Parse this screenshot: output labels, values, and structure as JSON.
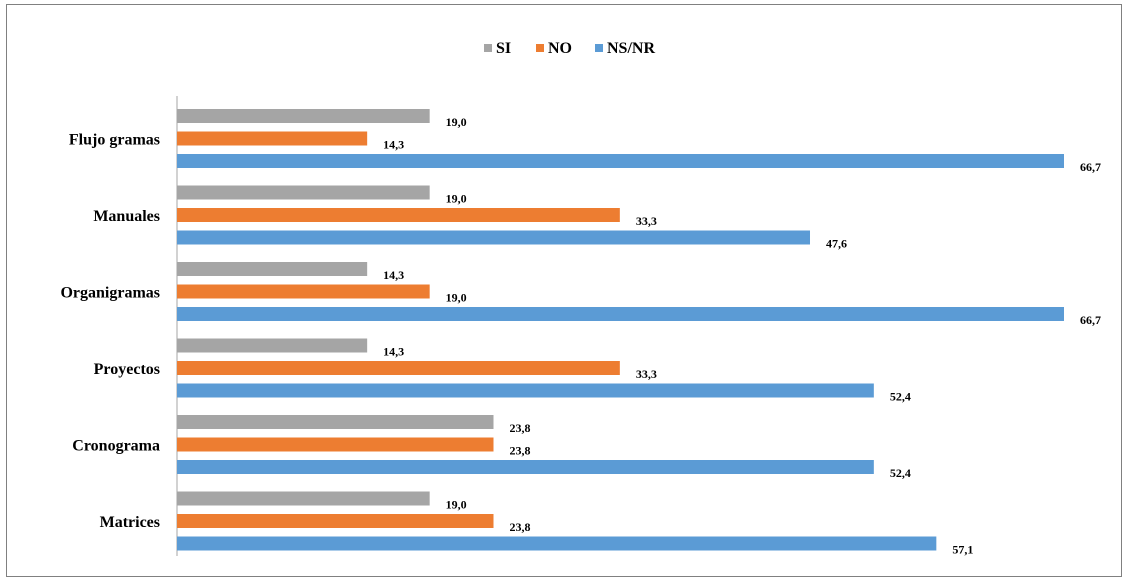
{
  "chart_data": {
    "type": "bar",
    "orientation": "horizontal",
    "categories": [
      "Flujo gramas",
      "Manuales",
      "Organigramas",
      "Proyectos",
      "Cronograma",
      "Matrices"
    ],
    "series": [
      {
        "name": "SI",
        "color": "#A5A5A5",
        "values": [
          19.0,
          19.0,
          14.3,
          14.3,
          23.8,
          19.0
        ],
        "labels": [
          "19,0",
          "19,0",
          "14,3",
          "14,3",
          "23,8",
          "19,0"
        ]
      },
      {
        "name": "NO",
        "color": "#ED7D31",
        "values": [
          14.3,
          33.3,
          19.0,
          33.3,
          23.8,
          23.8
        ],
        "labels": [
          "14,3",
          "33,3",
          "19,0",
          "33,3",
          "23,8",
          "23,8"
        ]
      },
      {
        "name": "NS/NR",
        "color": "#5B9BD5",
        "values": [
          66.7,
          47.6,
          66.7,
          52.4,
          52.4,
          57.1
        ],
        "labels": [
          "66,7",
          "47,6",
          "66,7",
          "52,4",
          "52,4",
          "57,1"
        ]
      }
    ],
    "xlim": [
      0,
      66.7
    ],
    "legend_position": "top-center",
    "grid": false
  }
}
